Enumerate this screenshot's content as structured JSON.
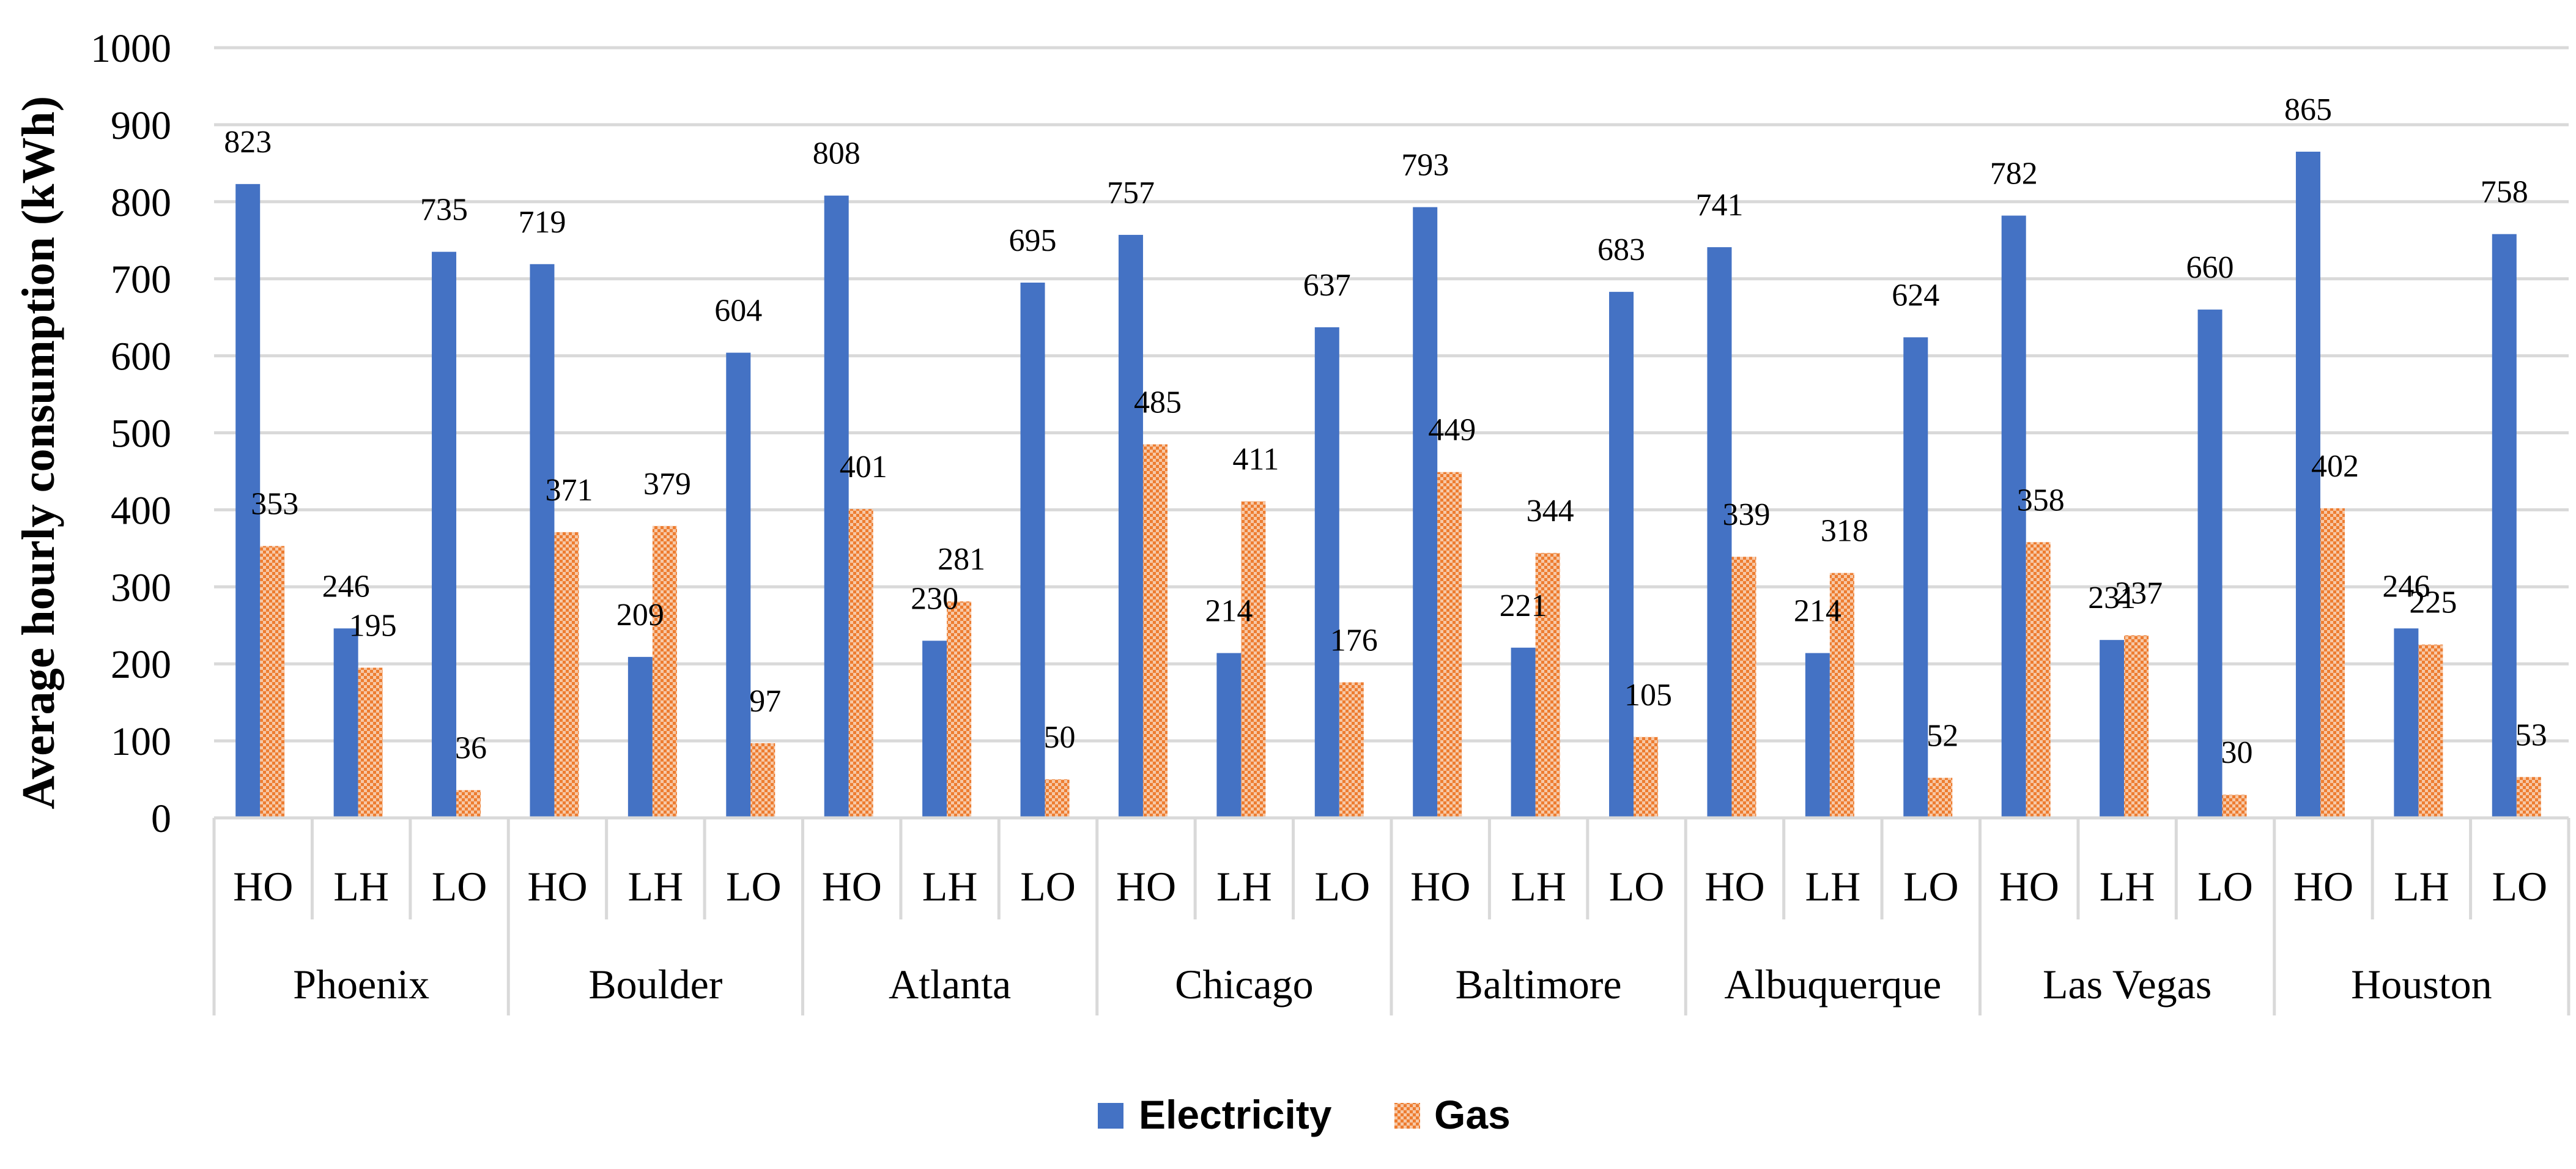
{
  "chart_data": {
    "type": "bar",
    "ylabel": "Average hourly consumption (kWh)",
    "ylim": [
      0,
      1000
    ],
    "yticks": [
      0,
      100,
      200,
      300,
      400,
      500,
      600,
      700,
      800,
      900,
      1000
    ],
    "grid": true,
    "legend_position": "bottom-center",
    "subcategories": [
      "HO",
      "LH",
      "LO"
    ],
    "cities": [
      "Phoenix",
      "Boulder",
      "Atlanta",
      "Chicago",
      "Baltimore",
      "Albuquerque",
      "Las Vegas",
      "Houston"
    ],
    "series": [
      {
        "name": "Electricity",
        "color": "#4472C4",
        "values": [
          823,
          246,
          735,
          719,
          209,
          604,
          808,
          230,
          695,
          757,
          214,
          637,
          793,
          221,
          683,
          741,
          214,
          624,
          782,
          231,
          660,
          865,
          246,
          758
        ]
      },
      {
        "name": "Gas",
        "color": "#ED7D31",
        "values": [
          353,
          195,
          36,
          371,
          379,
          97,
          401,
          281,
          50,
          485,
          411,
          176,
          449,
          344,
          105,
          339,
          318,
          52,
          358,
          237,
          30,
          402,
          225,
          53
        ]
      }
    ]
  }
}
